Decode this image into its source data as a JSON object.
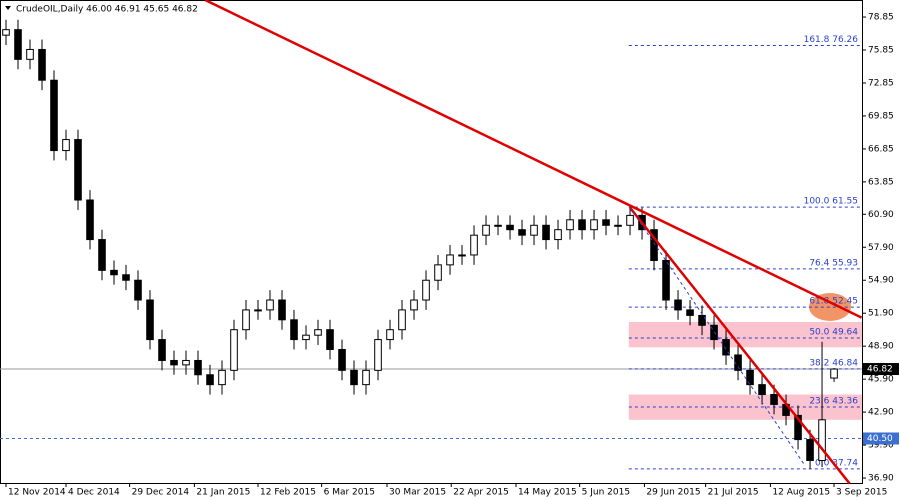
{
  "chart_data": {
    "type": "candlestick",
    "title": "CrudeOIL,Daily  46.00 46.91 45.65 46.82",
    "open": [
      77.2,
      77.7,
      75.0,
      75.9,
      73.1,
      66.7,
      67.7,
      62.2,
      58.6,
      55.8,
      55.4,
      54.9,
      53.1,
      49.5,
      47.6,
      47.2,
      47.6,
      46.3,
      45.4,
      46.7,
      50.4,
      52.2,
      52.2,
      53.1,
      51.3,
      49.5,
      49.9,
      50.4,
      48.6,
      46.7,
      45.4,
      46.7,
      49.5,
      50.4,
      52.2,
      53.1,
      54.9,
      56.3,
      57.2,
      57.2,
      59.0,
      59.9,
      59.9,
      59.5,
      59.0,
      59.9,
      58.6,
      59.5,
      60.4,
      59.5,
      60.4,
      59.9,
      59.9,
      60.8,
      59.5,
      56.7,
      53.1,
      52.2,
      51.7,
      50.8,
      49.5,
      48.1,
      46.7,
      45.4,
      44.5,
      43.6,
      42.6,
      40.4,
      38.5,
      46.0
    ],
    "high": [
      78.6,
      78.6,
      76.8,
      76.8,
      74.0,
      68.6,
      68.6,
      63.1,
      59.5,
      56.7,
      56.3,
      55.8,
      54.0,
      50.4,
      48.5,
      48.5,
      48.5,
      47.2,
      47.6,
      51.3,
      53.1,
      53.1,
      54.0,
      54.0,
      52.2,
      50.8,
      51.3,
      51.3,
      49.5,
      47.6,
      47.6,
      50.4,
      51.3,
      53.1,
      54.0,
      55.8,
      57.2,
      58.1,
      58.1,
      59.9,
      60.8,
      60.8,
      60.8,
      60.4,
      60.8,
      60.8,
      60.4,
      61.3,
      61.3,
      61.3,
      61.3,
      60.8,
      61.55,
      61.5,
      60.4,
      57.6,
      54.0,
      53.1,
      52.6,
      51.7,
      50.4,
      49.0,
      47.6,
      46.3,
      45.4,
      44.5,
      43.5,
      41.3,
      49.3,
      46.91
    ],
    "low": [
      76.3,
      74.1,
      74.1,
      72.2,
      65.8,
      65.8,
      61.3,
      57.7,
      54.9,
      54.5,
      54.0,
      52.2,
      48.6,
      46.7,
      46.3,
      46.3,
      45.4,
      44.5,
      44.5,
      45.8,
      49.5,
      51.3,
      51.3,
      50.4,
      48.6,
      48.6,
      49.0,
      47.7,
      45.8,
      44.5,
      44.5,
      45.8,
      48.6,
      49.5,
      51.3,
      52.2,
      54.0,
      55.4,
      56.3,
      56.3,
      58.1,
      59.0,
      58.6,
      58.1,
      58.1,
      57.7,
      57.7,
      58.6,
      58.6,
      58.6,
      59.0,
      59.0,
      59.0,
      58.6,
      55.8,
      52.2,
      51.3,
      50.8,
      49.9,
      48.6,
      47.2,
      45.8,
      44.5,
      43.6,
      42.7,
      41.7,
      39.5,
      37.74,
      37.9,
      45.65
    ],
    "close": [
      77.7,
      75.0,
      75.9,
      73.1,
      66.7,
      67.7,
      62.2,
      58.6,
      55.8,
      55.4,
      54.9,
      53.1,
      49.5,
      47.6,
      47.2,
      47.6,
      46.3,
      45.4,
      46.7,
      50.4,
      52.2,
      52.2,
      53.1,
      51.3,
      49.5,
      49.9,
      50.4,
      48.6,
      46.7,
      45.4,
      46.7,
      49.5,
      50.4,
      52.2,
      53.1,
      54.9,
      56.3,
      57.2,
      57.2,
      59.0,
      59.9,
      59.9,
      59.5,
      59.0,
      59.9,
      58.6,
      59.5,
      60.4,
      59.5,
      60.4,
      59.9,
      59.9,
      60.8,
      59.5,
      56.7,
      53.1,
      52.2,
      51.7,
      50.8,
      49.5,
      48.1,
      46.7,
      45.4,
      44.5,
      43.6,
      42.6,
      40.4,
      38.5,
      42.2,
      46.82
    ],
    "xlim": [
      -0.5,
      71.33
    ],
    "xticks": [
      {
        "value": 0,
        "label": "12 Nov 2014"
      },
      {
        "value": 5,
        "label": "4 Dec 2014"
      },
      {
        "value": 10.3,
        "label": "29 Dec 2014"
      },
      {
        "value": 15.7,
        "label": "21 Jan 2015"
      },
      {
        "value": 21,
        "label": "12 Feb 2015"
      },
      {
        "value": 26.3,
        "label": "6 Mar 2015"
      },
      {
        "value": 31.75,
        "label": "30 Mar 2015"
      },
      {
        "value": 37.1,
        "label": "22 Apr 2015"
      },
      {
        "value": 42.5,
        "label": "14 May 2015"
      },
      {
        "value": 47.8,
        "label": "5 Jun 2015"
      },
      {
        "value": 53.2,
        "label": "29 Jun 2015"
      },
      {
        "value": 58.3,
        "label": "21 Jul 2015"
      },
      {
        "value": 63.7,
        "label": "12 Aug 2015"
      },
      {
        "value": 69,
        "label": "3 Sep 2015"
      }
    ],
    "ylim": [
      36.45,
      80.4
    ],
    "yticks": [
      {
        "value": 36.9,
        "label": "36.90"
      },
      {
        "value": 39.9,
        "label": "39.90"
      },
      {
        "value": 42.9,
        "label": "42.90"
      },
      {
        "value": 45.9,
        "label": "45.90"
      },
      {
        "value": 48.9,
        "label": "48.90"
      },
      {
        "value": 51.9,
        "label": "51.90"
      },
      {
        "value": 54.9,
        "label": "54.90"
      },
      {
        "value": 57.9,
        "label": "57.90"
      },
      {
        "value": 60.9,
        "label": "60.90"
      },
      63.85,
      66.85,
      69.85,
      72.85,
      75.85,
      78.85
    ],
    "price_labels": [
      {
        "value": 46.82,
        "label": "46.82",
        "color": "#000000"
      },
      {
        "value": 40.5,
        "label": "40.50",
        "color": "#3b6fd0"
      }
    ],
    "fib_levels": [
      {
        "value": 76.26,
        "label": "161.8 76.26"
      },
      {
        "value": 61.55,
        "label": "100.0 61.55"
      },
      {
        "value": 55.93,
        "label": "76.4 55.93"
      },
      {
        "value": 52.45,
        "label": "61.8 52.45"
      },
      {
        "value": 49.64,
        "label": "50.0 49.64"
      },
      {
        "value": 46.84,
        "label": "38.2 46.84"
      },
      {
        "value": 43.36,
        "label": "23.6 43.36"
      },
      {
        "value": 37.74,
        "label": "0.0 37.74"
      }
    ],
    "fib_start": 51.9,
    "zones": [
      [
        48.8,
        51.1
      ],
      [
        42.2,
        44.5
      ]
    ],
    "trendlines": [
      {
        "color": "#e00000",
        "points": [
          [
            16.6,
            80.4
          ],
          [
            71.3,
            51.5
          ]
        ]
      },
      {
        "color": "#e00000",
        "points": [
          [
            52,
            61.5
          ],
          [
            70.3,
            36.4
          ]
        ]
      },
      {
        "color": "#2a3fd0",
        "dashed": true,
        "points": [
          [
            52,
            61.5
          ],
          [
            66.6,
            38.0
          ]
        ]
      }
    ]
  }
}
